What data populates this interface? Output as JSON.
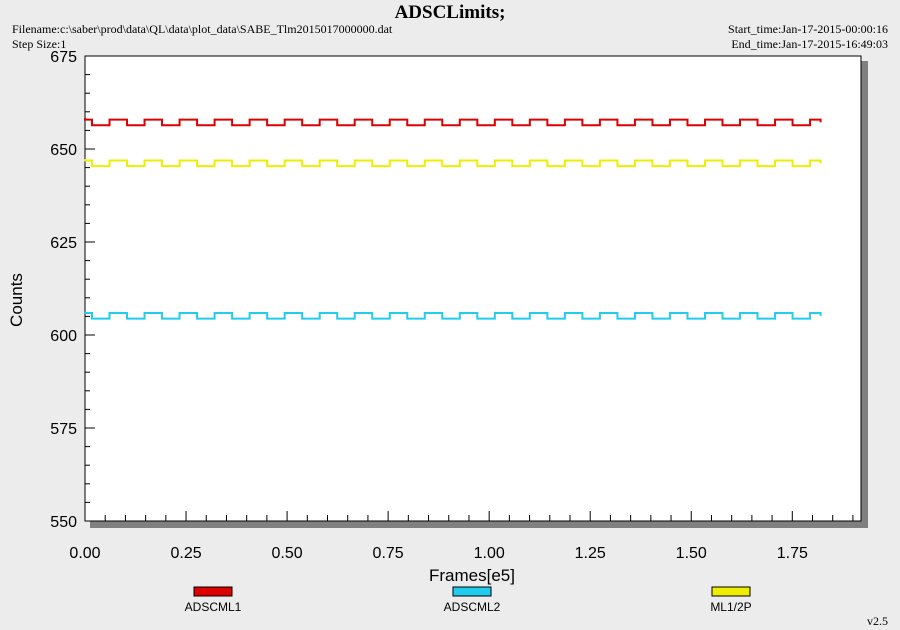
{
  "header": {
    "title": "ADSCLimits;",
    "filename": "Filename:c:\\saber\\prod\\data\\QL\\data\\plot_data\\SABE_Tlm2015017000000.dat",
    "step_size": "Step Size:1",
    "start_time": "Start_time:Jan-17-2015-00:00:16",
    "end_time": "End_time:Jan-17-2015-16:49:03"
  },
  "footer": {
    "version": "v2.5"
  },
  "colors": {
    "ADSCML1": "#dd0000",
    "ADSCML2": "#22ccee",
    "ML1/2P": "#eeee00",
    "plot_bg": "#ffffff",
    "page_bg": "#ececec"
  },
  "chart_data": {
    "type": "line",
    "title": "ADSCLimits;",
    "xlabel": "Frames[e5]",
    "ylabel": "Counts",
    "xlim": [
      0,
      1.92
    ],
    "ylim": [
      550,
      675
    ],
    "xticks": [
      "0.00",
      "0.25",
      "0.50",
      "0.75",
      "1.00",
      "1.25",
      "1.50",
      "1.75"
    ],
    "yticks": [
      "550",
      "575",
      "600",
      "625",
      "650",
      "675"
    ],
    "grid": false,
    "legend_position": "bottom",
    "x_range": [
      0,
      1.82
    ],
    "series": [
      {
        "name": "ADSCML1",
        "low": 656.4,
        "high": 657.9,
        "cycles": 21
      },
      {
        "name": "ADSCML2",
        "low": 604.4,
        "high": 605.9,
        "cycles": 21
      },
      {
        "name": "ML1/2P",
        "low": 645.4,
        "high": 646.9,
        "cycles": 21
      }
    ]
  }
}
